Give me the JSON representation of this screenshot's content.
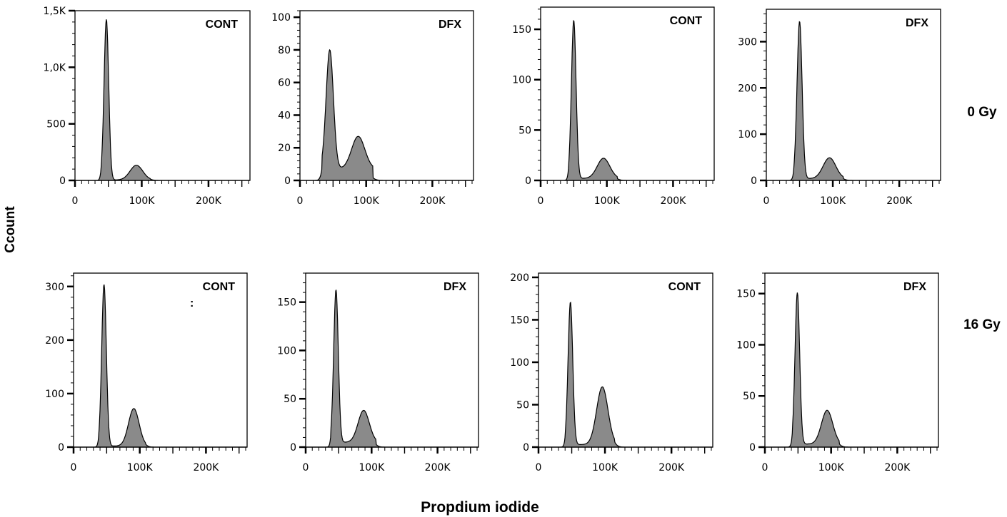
{
  "figure": {
    "ylabel": "Ccount",
    "xlabel": "Propdium iodide",
    "row_labels": [
      "0 Gy",
      "16 Gy"
    ]
  },
  "chart_data": [
    {
      "type": "area",
      "row": "0 Gy",
      "title": "CONT",
      "note": "",
      "xlim": [
        0,
        262144
      ],
      "ylim": [
        0,
        1500
      ],
      "xticks": [
        0,
        100000,
        200000
      ],
      "xtick_labels": [
        "0",
        "100K",
        "200K"
      ],
      "yticks": [
        0,
        500,
        1000,
        1500
      ],
      "ytick_labels": [
        "0",
        "500",
        "1,0K",
        "1,5K"
      ],
      "g1_peak": {
        "x": 47000,
        "y": 1420,
        "width": 3500
      },
      "g2_peak": {
        "x": 92000,
        "y": 130,
        "width": 9500
      },
      "background": 4
    },
    {
      "type": "area",
      "row": "0 Gy",
      "title": "DFX",
      "note": "",
      "xlim": [
        0,
        262144
      ],
      "ylim": [
        0,
        104
      ],
      "xticks": [
        0,
        100000,
        200000
      ],
      "xtick_labels": [
        "0",
        "100K",
        "200K"
      ],
      "yticks": [
        0,
        20,
        40,
        60,
        80,
        100
      ],
      "ytick_labels": [
        "0",
        "20",
        "40",
        "60",
        "80",
        "100"
      ],
      "g1_peak": {
        "x": 45000,
        "y": 73,
        "width": 5500
      },
      "g2_peak": {
        "x": 88000,
        "y": 20,
        "width": 10000
      },
      "background": 7
    },
    {
      "type": "area",
      "row": "0 Gy",
      "title": "CONT",
      "note": "",
      "xlim": [
        0,
        262144
      ],
      "ylim": [
        0,
        172
      ],
      "xticks": [
        0,
        100000,
        200000
      ],
      "xtick_labels": [
        "0",
        "100K",
        "200K"
      ],
      "yticks": [
        0,
        50,
        100,
        150
      ],
      "ytick_labels": [
        "0",
        "50",
        "100",
        "150"
      ],
      "g1_peak": {
        "x": 50000,
        "y": 157,
        "width": 3500
      },
      "g2_peak": {
        "x": 95000,
        "y": 20,
        "width": 9500
      },
      "background": 2
    },
    {
      "type": "area",
      "row": "0 Gy",
      "title": "DFX",
      "note": "",
      "xlim": [
        0,
        262144
      ],
      "ylim": [
        0,
        370
      ],
      "xticks": [
        0,
        100000,
        200000
      ],
      "xtick_labels": [
        "0",
        "100K",
        "200K"
      ],
      "yticks": [
        0,
        100,
        200,
        300
      ],
      "ytick_labels": [
        "0",
        "100",
        "200",
        "300"
      ],
      "g1_peak": {
        "x": 50000,
        "y": 340,
        "width": 3800
      },
      "g2_peak": {
        "x": 95000,
        "y": 45,
        "width": 9500
      },
      "background": 4
    },
    {
      "type": "area",
      "row": "16 Gy",
      "title": "CONT",
      "note": ":",
      "xlim": [
        0,
        262144
      ],
      "ylim": [
        0,
        325
      ],
      "xticks": [
        0,
        100000,
        200000
      ],
      "xtick_labels": [
        "0",
        "100K",
        "200K"
      ],
      "yticks": [
        0,
        100,
        200,
        300
      ],
      "ytick_labels": [
        "0",
        "100",
        "200",
        "300"
      ],
      "g1_peak": {
        "x": 46000,
        "y": 302,
        "width": 3500
      },
      "g2_peak": {
        "x": 91000,
        "y": 70,
        "width": 8000
      },
      "background": 2
    },
    {
      "type": "area",
      "row": "16 Gy",
      "title": "DFX",
      "note": "",
      "xlim": [
        0,
        262144
      ],
      "ylim": [
        0,
        180
      ],
      "xticks": [
        0,
        100000,
        200000
      ],
      "xtick_labels": [
        "0",
        "100K",
        "200K"
      ],
      "yticks": [
        0,
        50,
        100,
        150
      ],
      "ytick_labels": [
        "0",
        "50",
        "100",
        "150"
      ],
      "g1_peak": {
        "x": 46000,
        "y": 158,
        "width": 3500
      },
      "g2_peak": {
        "x": 88000,
        "y": 33,
        "width": 8500
      },
      "background": 5
    },
    {
      "type": "area",
      "row": "16 Gy",
      "title": "CONT",
      "note": "",
      "xlim": [
        0,
        262144
      ],
      "ylim": [
        0,
        205
      ],
      "xticks": [
        0,
        100000,
        200000
      ],
      "xtick_labels": [
        "0",
        "100K",
        "200K"
      ],
      "yticks": [
        0,
        50,
        100,
        150,
        200
      ],
      "ytick_labels": [
        "0",
        "50",
        "100",
        "150",
        "200"
      ],
      "g1_peak": {
        "x": 48000,
        "y": 168,
        "width": 3500
      },
      "g2_peak": {
        "x": 96000,
        "y": 68,
        "width": 8500
      },
      "background": 3
    },
    {
      "type": "area",
      "row": "16 Gy",
      "title": "DFX",
      "note": "",
      "xlim": [
        0,
        262144
      ],
      "ylim": [
        0,
        170
      ],
      "xticks": [
        0,
        100000,
        200000
      ],
      "xtick_labels": [
        "0",
        "100K",
        "200K"
      ],
      "yticks": [
        0,
        50,
        100,
        150
      ],
      "ytick_labels": [
        "0",
        "50",
        "100",
        "150"
      ],
      "g1_peak": {
        "x": 49000,
        "y": 148,
        "width": 3500
      },
      "g2_peak": {
        "x": 94000,
        "y": 33,
        "width": 8500
      },
      "background": 3
    }
  ]
}
